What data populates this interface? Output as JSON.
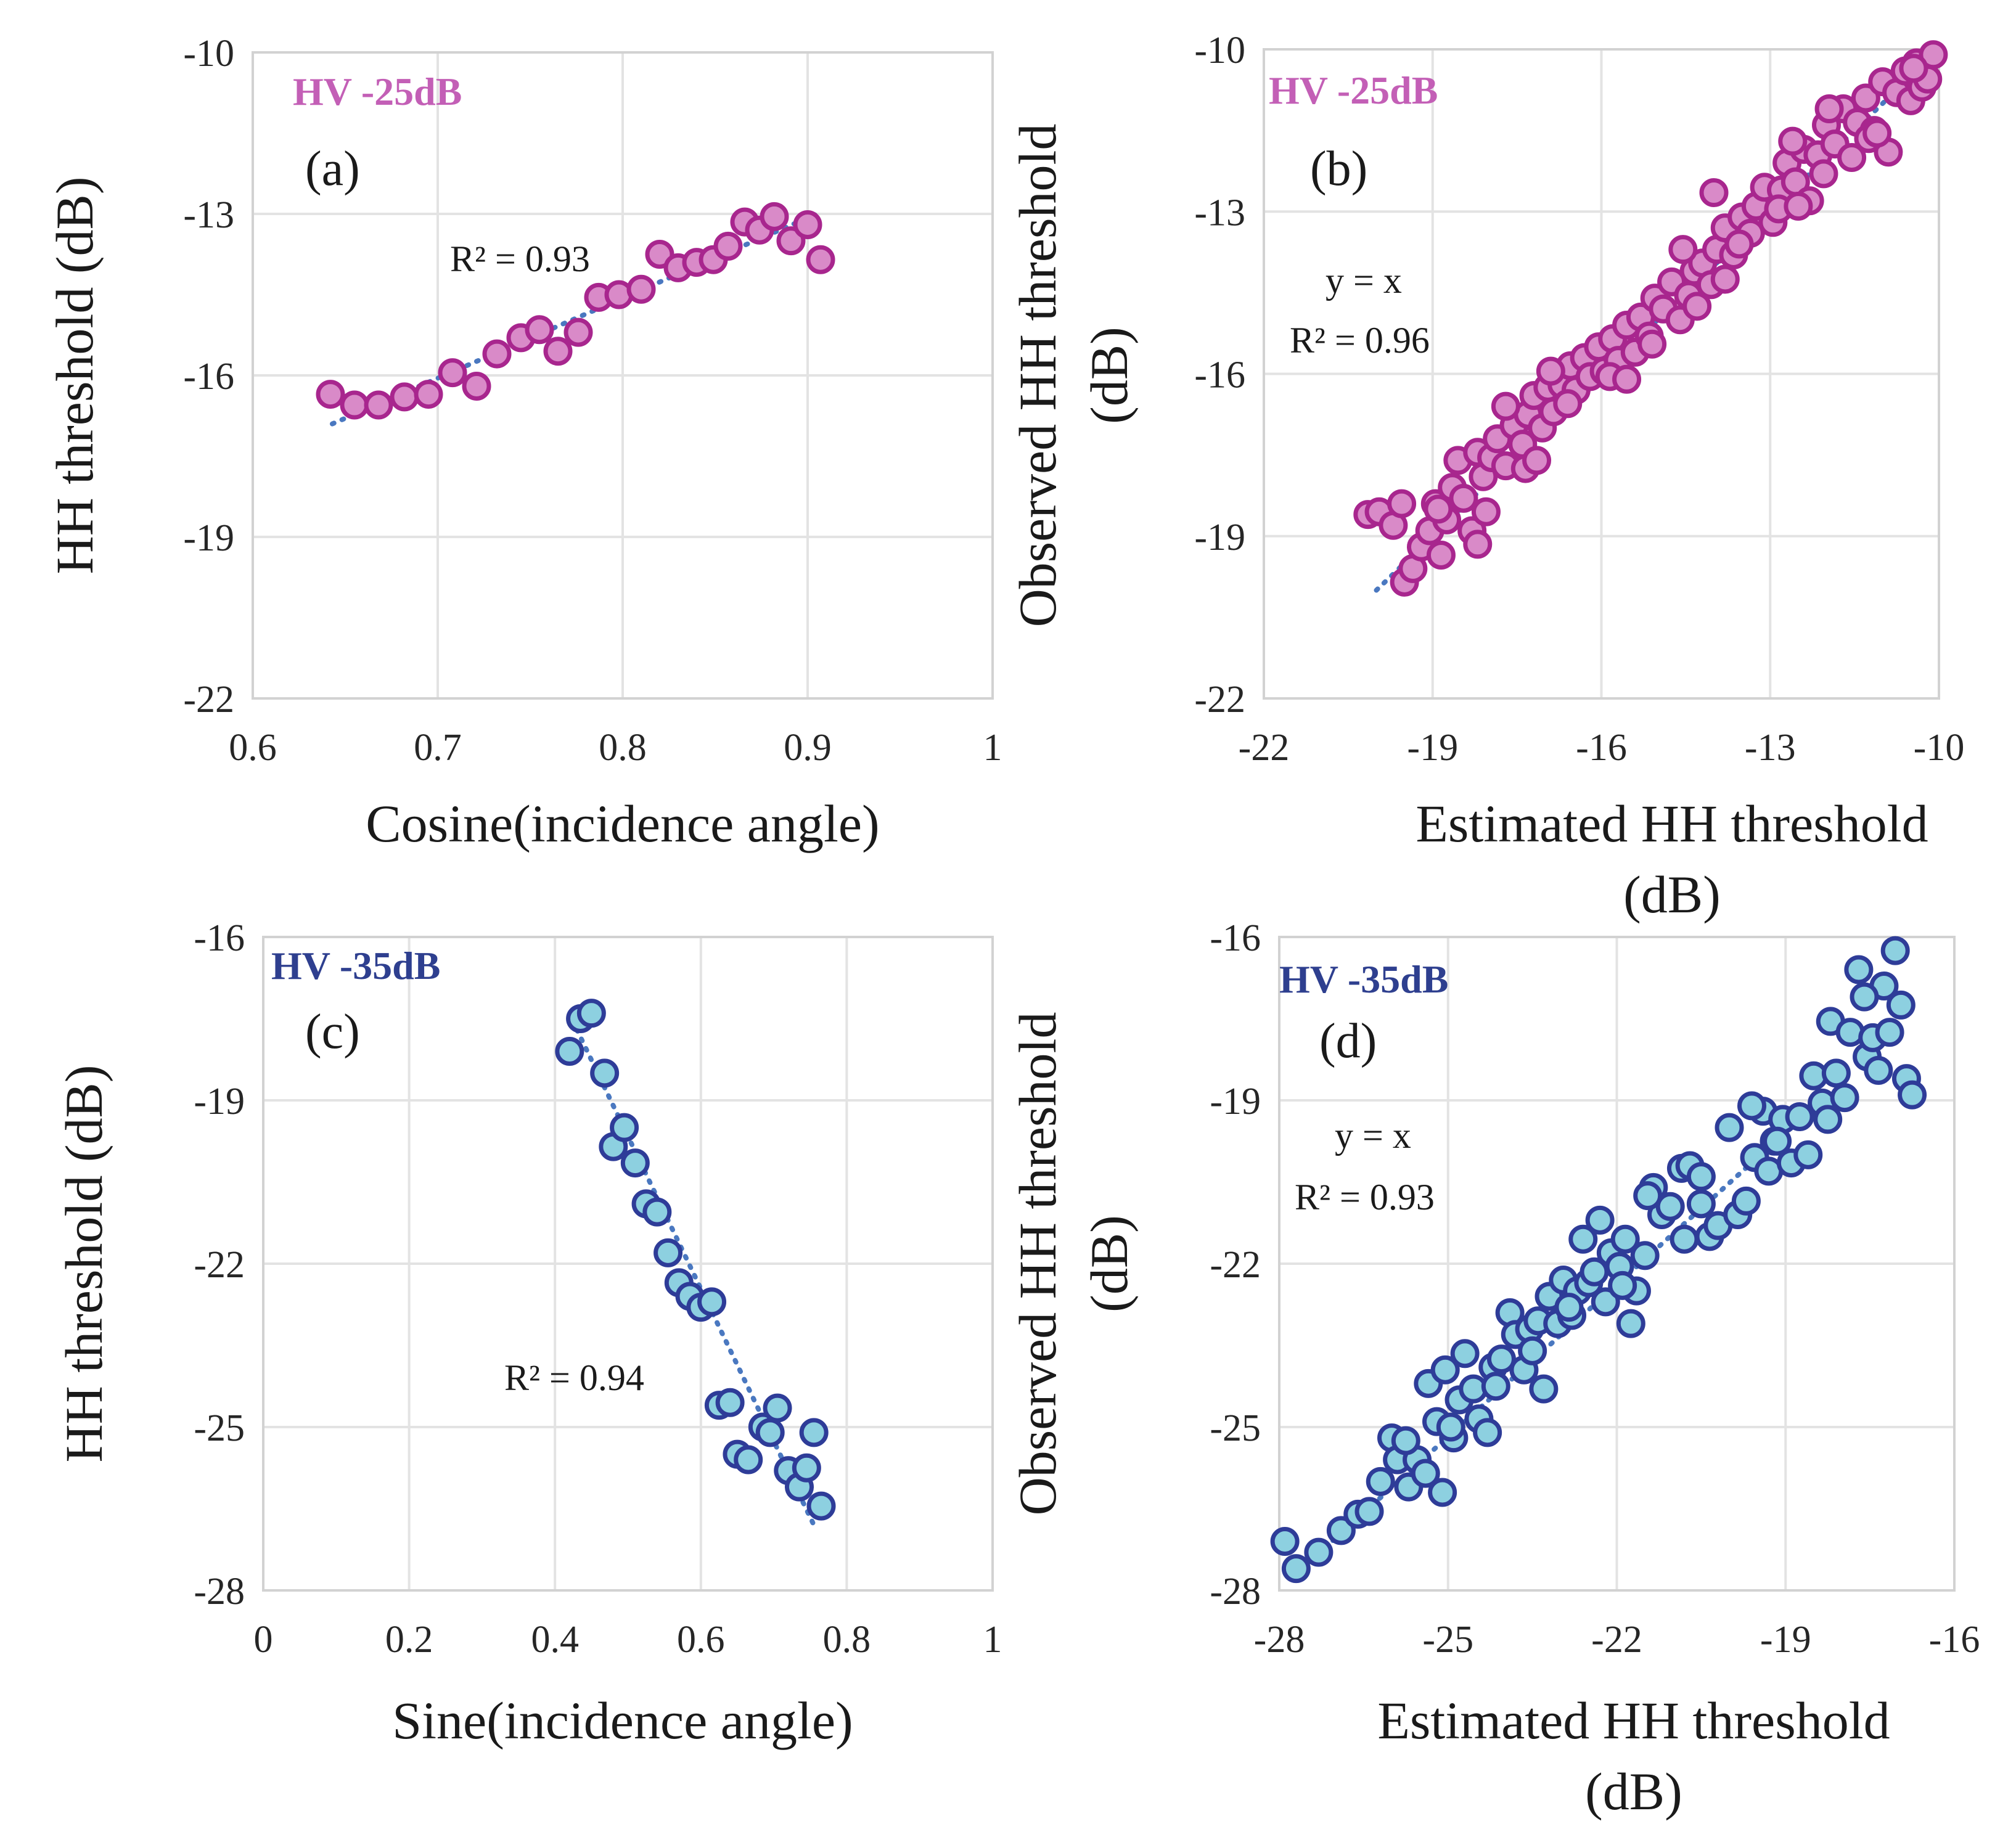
{
  "colors": {
    "pink_fill": "#d98ac8",
    "pink_edge": "#a8268e",
    "pink_label": "#c35fb6",
    "cyan_fill": "#8dd0e0",
    "cyan_edge": "#2e3c98",
    "navy_label": "#2e3f8f",
    "trend": "#4a78c0",
    "grid": "#e3e3e3"
  },
  "chart_data": [
    {
      "id": "a",
      "type": "scatter",
      "panel_label": "(a)",
      "tag": "HV -25dB",
      "tag_color": "pink_label",
      "marker": "pink",
      "annotations": [
        "R² = 0.93"
      ],
      "xlabel": [
        "Cosine(incidence angle)"
      ],
      "ylabel": [
        "HH threshold (dB)"
      ],
      "xlim": [
        0.6,
        1
      ],
      "ylim": [
        -22,
        -10
      ],
      "xticks": [
        0.6,
        0.7,
        0.8,
        0.9,
        1
      ],
      "xtick_labels": [
        "0.6",
        "0.7",
        "0.8",
        "0.9",
        "1"
      ],
      "yticks": [
        -22,
        -19,
        -16,
        -13,
        -10
      ],
      "ytick_labels": [
        "-22",
        "-19",
        "-16",
        "-13",
        "-10"
      ],
      "grid": true,
      "trendline": [
        [
          0.643,
          -16.9
        ],
        [
          0.905,
          -13.0
        ]
      ],
      "points": [
        [
          0.642,
          -16.35
        ],
        [
          0.655,
          -16.55
        ],
        [
          0.668,
          -16.55
        ],
        [
          0.682,
          -16.4
        ],
        [
          0.695,
          -16.35
        ],
        [
          0.708,
          -15.95
        ],
        [
          0.721,
          -16.2
        ],
        [
          0.732,
          -15.6
        ],
        [
          0.745,
          -15.3
        ],
        [
          0.755,
          -15.15
        ],
        [
          0.765,
          -15.55
        ],
        [
          0.776,
          -15.2
        ],
        [
          0.787,
          -14.55
        ],
        [
          0.798,
          -14.5
        ],
        [
          0.81,
          -14.4
        ],
        [
          0.82,
          -13.75
        ],
        [
          0.83,
          -14.0
        ],
        [
          0.84,
          -13.9
        ],
        [
          0.849,
          -13.85
        ],
        [
          0.857,
          -13.6
        ],
        [
          0.866,
          -13.15
        ],
        [
          0.874,
          -13.3
        ],
        [
          0.882,
          -13.05
        ],
        [
          0.891,
          -13.5
        ],
        [
          0.9,
          -13.2
        ],
        [
          0.907,
          -13.85
        ]
      ]
    },
    {
      "id": "b",
      "type": "scatter",
      "panel_label": "(b)",
      "tag": "HV -25dB",
      "tag_color": "pink_label",
      "marker": "pink",
      "annotations": [
        "y = x",
        "R² = 0.96"
      ],
      "xlabel": [
        "Estimated HH threshold",
        "(dB)"
      ],
      "ylabel": [
        "Observed HH threshold",
        "(dB)"
      ],
      "xlim": [
        -22,
        -10
      ],
      "ylim": [
        -22,
        -10
      ],
      "xticks": [
        -22,
        -19,
        -16,
        -13,
        -10
      ],
      "xtick_labels": [
        "-22",
        "-19",
        "-16",
        "-13",
        "-10"
      ],
      "yticks": [
        -22,
        -19,
        -16,
        -13,
        -10
      ],
      "ytick_labels": [
        "-22",
        "-19",
        "-16",
        "-13",
        "-10"
      ],
      "grid": true,
      "trendline": [
        [
          -20.0,
          -20.0
        ],
        [
          -10.1,
          -10.1
        ]
      ],
      "points": [
        [
          -20.15,
          -18.6
        ],
        [
          -19.95,
          -18.55
        ],
        [
          -19.7,
          -18.8
        ],
        [
          -19.55,
          -18.4
        ],
        [
          -19.5,
          -19.85
        ],
        [
          -19.35,
          -19.6
        ],
        [
          -19.2,
          -19.2
        ],
        [
          -19.05,
          -18.9
        ],
        [
          -18.95,
          -18.4
        ],
        [
          -18.85,
          -19.35
        ],
        [
          -18.75,
          -18.7
        ],
        [
          -18.65,
          -18.1
        ],
        [
          -18.55,
          -17.6
        ],
        [
          -18.45,
          -18.3
        ],
        [
          -18.3,
          -18.9
        ],
        [
          -18.2,
          -17.45
        ],
        [
          -18.1,
          -17.9
        ],
        [
          -17.95,
          -17.55
        ],
        [
          -17.85,
          -17.2
        ],
        [
          -17.7,
          -17.7
        ],
        [
          -17.55,
          -16.95
        ],
        [
          -17.4,
          -17.3
        ],
        [
          -17.3,
          -16.75
        ],
        [
          -17.2,
          -16.4
        ],
        [
          -17.05,
          -17.0
        ],
        [
          -16.95,
          -16.25
        ],
        [
          -16.85,
          -16.7
        ],
        [
          -16.7,
          -16.2
        ],
        [
          -16.55,
          -15.85
        ],
        [
          -16.45,
          -16.3
        ],
        [
          -16.3,
          -15.7
        ],
        [
          -16.2,
          -16.05
        ],
        [
          -16.05,
          -15.5
        ],
        [
          -15.95,
          -15.95
        ],
        [
          -15.8,
          -15.35
        ],
        [
          -15.7,
          -15.75
        ],
        [
          -15.55,
          -15.1
        ],
        [
          -15.4,
          -15.6
        ],
        [
          -15.3,
          -14.95
        ],
        [
          -15.15,
          -15.3
        ],
        [
          -15.05,
          -14.6
        ],
        [
          -14.9,
          -14.8
        ],
        [
          -14.75,
          -14.3
        ],
        [
          -14.6,
          -15.0
        ],
        [
          -14.45,
          -14.55
        ],
        [
          -14.35,
          -14.1
        ],
        [
          -14.2,
          -13.95
        ],
        [
          -14.05,
          -14.35
        ],
        [
          -13.95,
          -13.7
        ],
        [
          -13.8,
          -13.3
        ],
        [
          -13.65,
          -13.8
        ],
        [
          -13.5,
          -13.1
        ],
        [
          -13.35,
          -13.4
        ],
        [
          -13.25,
          -12.9
        ],
        [
          -13.1,
          -12.55
        ],
        [
          -12.95,
          -13.2
        ],
        [
          -12.8,
          -12.6
        ],
        [
          -12.7,
          -12.1
        ],
        [
          -12.55,
          -12.45
        ],
        [
          -12.4,
          -11.85
        ],
        [
          -12.3,
          -12.8
        ],
        [
          -12.15,
          -11.95
        ],
        [
          -12.0,
          -11.4
        ],
        [
          -11.85,
          -11.75
        ],
        [
          -11.7,
          -11.1
        ],
        [
          -11.55,
          -12.0
        ],
        [
          -11.45,
          -11.35
        ],
        [
          -11.3,
          -10.9
        ],
        [
          -11.15,
          -11.5
        ],
        [
          -11.0,
          -10.6
        ],
        [
          -10.9,
          -11.9
        ],
        [
          -10.75,
          -10.8
        ],
        [
          -10.6,
          -10.4
        ],
        [
          -10.5,
          -10.95
        ],
        [
          -10.4,
          -10.25
        ],
        [
          -10.3,
          -10.7
        ],
        [
          -10.2,
          -10.55
        ],
        [
          -10.1,
          -10.1
        ],
        [
          -18.9,
          -18.5
        ],
        [
          -18.05,
          -18.55
        ],
        [
          -17.35,
          -17.75
        ],
        [
          -16.6,
          -16.55
        ],
        [
          -15.85,
          -16.05
        ],
        [
          -15.1,
          -15.45
        ],
        [
          -14.3,
          -14.75
        ],
        [
          -13.55,
          -13.6
        ],
        [
          -12.85,
          -12.95
        ],
        [
          -12.05,
          -12.3
        ],
        [
          -11.25,
          -11.65
        ],
        [
          -10.45,
          -10.35
        ],
        [
          -17.7,
          -16.6
        ],
        [
          -16.9,
          -15.95
        ],
        [
          -14.55,
          -13.7
        ],
        [
          -12.6,
          -11.7
        ],
        [
          -14.0,
          -12.65
        ],
        [
          -11.95,
          -11.1
        ],
        [
          -18.2,
          -19.15
        ],
        [
          -17.15,
          -17.6
        ],
        [
          -15.55,
          -16.1
        ],
        [
          -13.8,
          -14.25
        ],
        [
          -12.5,
          -12.9
        ],
        [
          -11.1,
          -11.55
        ]
      ]
    },
    {
      "id": "c",
      "type": "scatter",
      "panel_label": "(c)",
      "tag": "HV -35dB",
      "tag_color": "navy_label",
      "marker": "cyan",
      "annotations": [
        "R² = 0.94"
      ],
      "xlabel": [
        "Sine(incidence angle)"
      ],
      "ylabel": [
        "HH threshold (dB)"
      ],
      "xlim": [
        0,
        1
      ],
      "ylim": [
        -28,
        -16
      ],
      "xticks": [
        0,
        0.2,
        0.4,
        0.6,
        0.8,
        1
      ],
      "xtick_labels": [
        "0",
        "0.2",
        "0.4",
        "0.6",
        "0.8",
        "1"
      ],
      "yticks": [
        -28,
        -25,
        -22,
        -19,
        -16
      ],
      "ytick_labels": [
        "-28",
        "-25",
        "-22",
        "-19",
        "-16"
      ],
      "grid": true,
      "trendline": [
        [
          0.43,
          -17.7
        ],
        [
          0.755,
          -26.8
        ]
      ],
      "points": [
        [
          0.42,
          -18.1
        ],
        [
          0.435,
          -17.5
        ],
        [
          0.45,
          -17.4
        ],
        [
          0.468,
          -18.5
        ],
        [
          0.48,
          -19.85
        ],
        [
          0.495,
          -19.5
        ],
        [
          0.51,
          -20.15
        ],
        [
          0.525,
          -20.9
        ],
        [
          0.54,
          -21.05
        ],
        [
          0.555,
          -21.8
        ],
        [
          0.57,
          -22.35
        ],
        [
          0.585,
          -22.6
        ],
        [
          0.6,
          -22.8
        ],
        [
          0.615,
          -22.7
        ],
        [
          0.625,
          -24.6
        ],
        [
          0.64,
          -24.55
        ],
        [
          0.65,
          -25.5
        ],
        [
          0.665,
          -25.6
        ],
        [
          0.685,
          -25.0
        ],
        [
          0.695,
          -25.1
        ],
        [
          0.705,
          -24.65
        ],
        [
          0.72,
          -25.8
        ],
        [
          0.735,
          -26.1
        ],
        [
          0.745,
          -25.75
        ],
        [
          0.755,
          -25.1
        ],
        [
          0.765,
          -26.45
        ]
      ]
    },
    {
      "id": "d",
      "type": "scatter",
      "panel_label": "(d)",
      "tag": "HV -35dB",
      "tag_color": "navy_label",
      "marker": "cyan",
      "annotations": [
        "y = x",
        "R² = 0.93"
      ],
      "xlabel": [
        "Estimated HH threshold",
        "(dB)"
      ],
      "ylabel": [
        "Observed HH threshold",
        "(dB)"
      ],
      "xlim": [
        -28,
        -16
      ],
      "ylim": [
        -28,
        -16
      ],
      "xticks": [
        -28,
        -25,
        -22,
        -19,
        -16
      ],
      "xtick_labels": [
        "-28",
        "-25",
        "-22",
        "-19",
        "-16"
      ],
      "yticks": [
        -28,
        -25,
        -22,
        -19,
        -16
      ],
      "ytick_labels": [
        "-28",
        "-25",
        "-22",
        "-19",
        "-16"
      ],
      "grid": true,
      "trendline": [
        [
          -27.6,
          -27.6
        ],
        [
          -18.8,
          -19.4
        ]
      ],
      "points": [
        [
          -27.9,
          -27.1
        ],
        [
          -27.7,
          -27.6
        ],
        [
          -27.3,
          -27.3
        ],
        [
          -26.9,
          -26.9
        ],
        [
          -26.6,
          -26.6
        ],
        [
          -26.4,
          -26.55
        ],
        [
          -26.0,
          -25.2
        ],
        [
          -25.9,
          -25.6
        ],
        [
          -25.7,
          -26.1
        ],
        [
          -25.55,
          -25.6
        ],
        [
          -25.4,
          -25.85
        ],
        [
          -25.35,
          -24.2
        ],
        [
          -25.2,
          -24.9
        ],
        [
          -25.1,
          -26.2
        ],
        [
          -25.05,
          -23.95
        ],
        [
          -24.9,
          -25.2
        ],
        [
          -24.8,
          -24.5
        ],
        [
          -24.7,
          -23.65
        ],
        [
          -24.55,
          -24.3
        ],
        [
          -24.45,
          -24.85
        ],
        [
          -24.3,
          -25.1
        ],
        [
          -24.2,
          -23.9
        ],
        [
          -24.05,
          -23.75
        ],
        [
          -23.9,
          -22.9
        ],
        [
          -23.8,
          -23.3
        ],
        [
          -23.65,
          -23.95
        ],
        [
          -23.55,
          -23.2
        ],
        [
          -23.4,
          -23.05
        ],
        [
          -23.3,
          -24.3
        ],
        [
          -23.2,
          -22.6
        ],
        [
          -23.05,
          -23.1
        ],
        [
          -22.95,
          -22.3
        ],
        [
          -22.8,
          -22.95
        ],
        [
          -22.7,
          -22.5
        ],
        [
          -22.6,
          -21.55
        ],
        [
          -22.5,
          -22.35
        ],
        [
          -22.4,
          -22.15
        ],
        [
          -22.3,
          -21.2
        ],
        [
          -22.2,
          -22.7
        ],
        [
          -22.1,
          -21.8
        ],
        [
          -21.95,
          -22.05
        ],
        [
          -21.85,
          -21.55
        ],
        [
          -21.75,
          -23.1
        ],
        [
          -21.65,
          -22.5
        ],
        [
          -21.5,
          -21.85
        ],
        [
          -21.35,
          -20.6
        ],
        [
          -21.2,
          -21.1
        ],
        [
          -21.05,
          -20.95
        ],
        [
          -20.85,
          -20.25
        ],
        [
          -20.7,
          -20.2
        ],
        [
          -20.5,
          -20.9
        ],
        [
          -20.35,
          -21.5
        ],
        [
          -20.2,
          -21.3
        ],
        [
          -20.0,
          -19.5
        ],
        [
          -19.85,
          -21.1
        ],
        [
          -19.7,
          -20.85
        ],
        [
          -19.55,
          -20.05
        ],
        [
          -19.4,
          -19.2
        ],
        [
          -19.3,
          -20.3
        ],
        [
          -19.2,
          -19.75
        ],
        [
          -19.05,
          -19.35
        ],
        [
          -18.9,
          -20.15
        ],
        [
          -18.75,
          -19.3
        ],
        [
          -18.6,
          -20.0
        ],
        [
          -18.5,
          -18.55
        ],
        [
          -18.35,
          -19.05
        ],
        [
          -18.2,
          -17.55
        ],
        [
          -18.1,
          -18.5
        ],
        [
          -17.95,
          -18.95
        ],
        [
          -17.85,
          -17.75
        ],
        [
          -17.7,
          -16.6
        ],
        [
          -17.55,
          -18.2
        ],
        [
          -17.45,
          -17.85
        ],
        [
          -17.35,
          -18.45
        ],
        [
          -17.25,
          -16.9
        ],
        [
          -17.15,
          -17.75
        ],
        [
          -17.05,
          -16.25
        ],
        [
          -16.95,
          -17.25
        ],
        [
          -16.85,
          -18.6
        ],
        [
          -16.75,
          -18.9
        ],
        [
          -17.6,
          -17.1
        ],
        [
          -19.15,
          -19.75
        ],
        [
          -20.5,
          -20.4
        ],
        [
          -21.9,
          -22.4
        ],
        [
          -23.5,
          -23.6
        ],
        [
          -24.95,
          -25.0
        ],
        [
          -26.2,
          -26.0
        ],
        [
          -18.25,
          -19.35
        ],
        [
          -20.8,
          -21.55
        ],
        [
          -22.85,
          -22.8
        ],
        [
          -24.15,
          -24.25
        ],
        [
          -25.75,
          -25.25
        ],
        [
          -19.6,
          -19.1
        ],
        [
          -21.45,
          -20.75
        ]
      ]
    }
  ]
}
